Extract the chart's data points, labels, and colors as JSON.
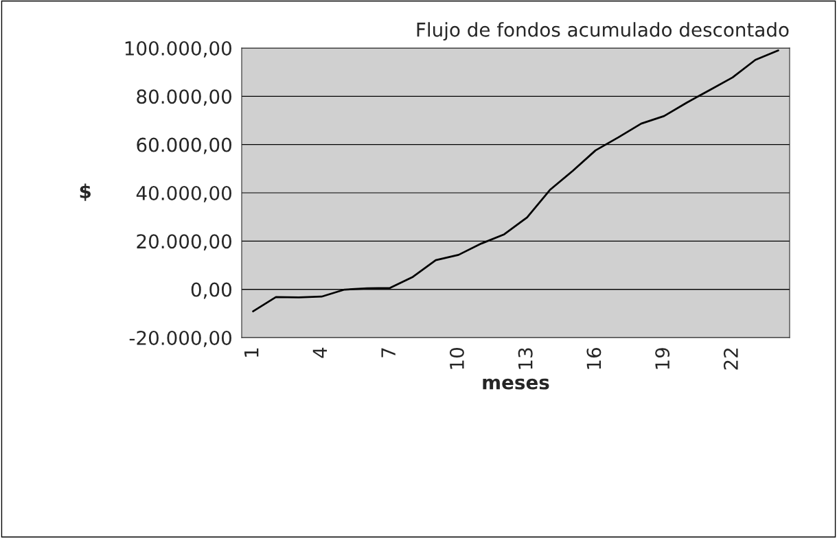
{
  "chart_data": {
    "type": "line",
    "title": "Flujo de fondos acumulado descontado",
    "xlabel": "meses",
    "ylabel": "$",
    "categories": [
      "1",
      null,
      null,
      "4",
      null,
      null,
      "7",
      null,
      null,
      "10",
      null,
      null,
      "13",
      null,
      null,
      "16",
      null,
      null,
      "19",
      null,
      null,
      "22",
      null,
      null
    ],
    "series": [
      {
        "color": "#000000",
        "values": [
          -9100,
          -3200,
          -3300,
          -3000,
          -100,
          400,
          600,
          5200,
          12100,
          14300,
          19000,
          22800,
          29800,
          41200,
          49100,
          57600,
          63000,
          68700,
          71800,
          77400,
          82600,
          87800,
          95100,
          99000
        ]
      }
    ],
    "ylim": [
      -20000,
      100000
    ],
    "yticks": [
      {
        "value": -20000,
        "label": "-20.000,00"
      },
      {
        "value": 0,
        "label": "0,00"
      },
      {
        "value": 20000,
        "label": "20.000,00"
      },
      {
        "value": 40000,
        "label": "40.000,00"
      },
      {
        "value": 60000,
        "label": "60.000,00"
      },
      {
        "value": 80000,
        "label": "80.000,00"
      },
      {
        "value": 100000,
        "label": "100.000,00"
      }
    ],
    "grid": "y",
    "legend": false,
    "marker": "none",
    "line_style": "solid"
  }
}
